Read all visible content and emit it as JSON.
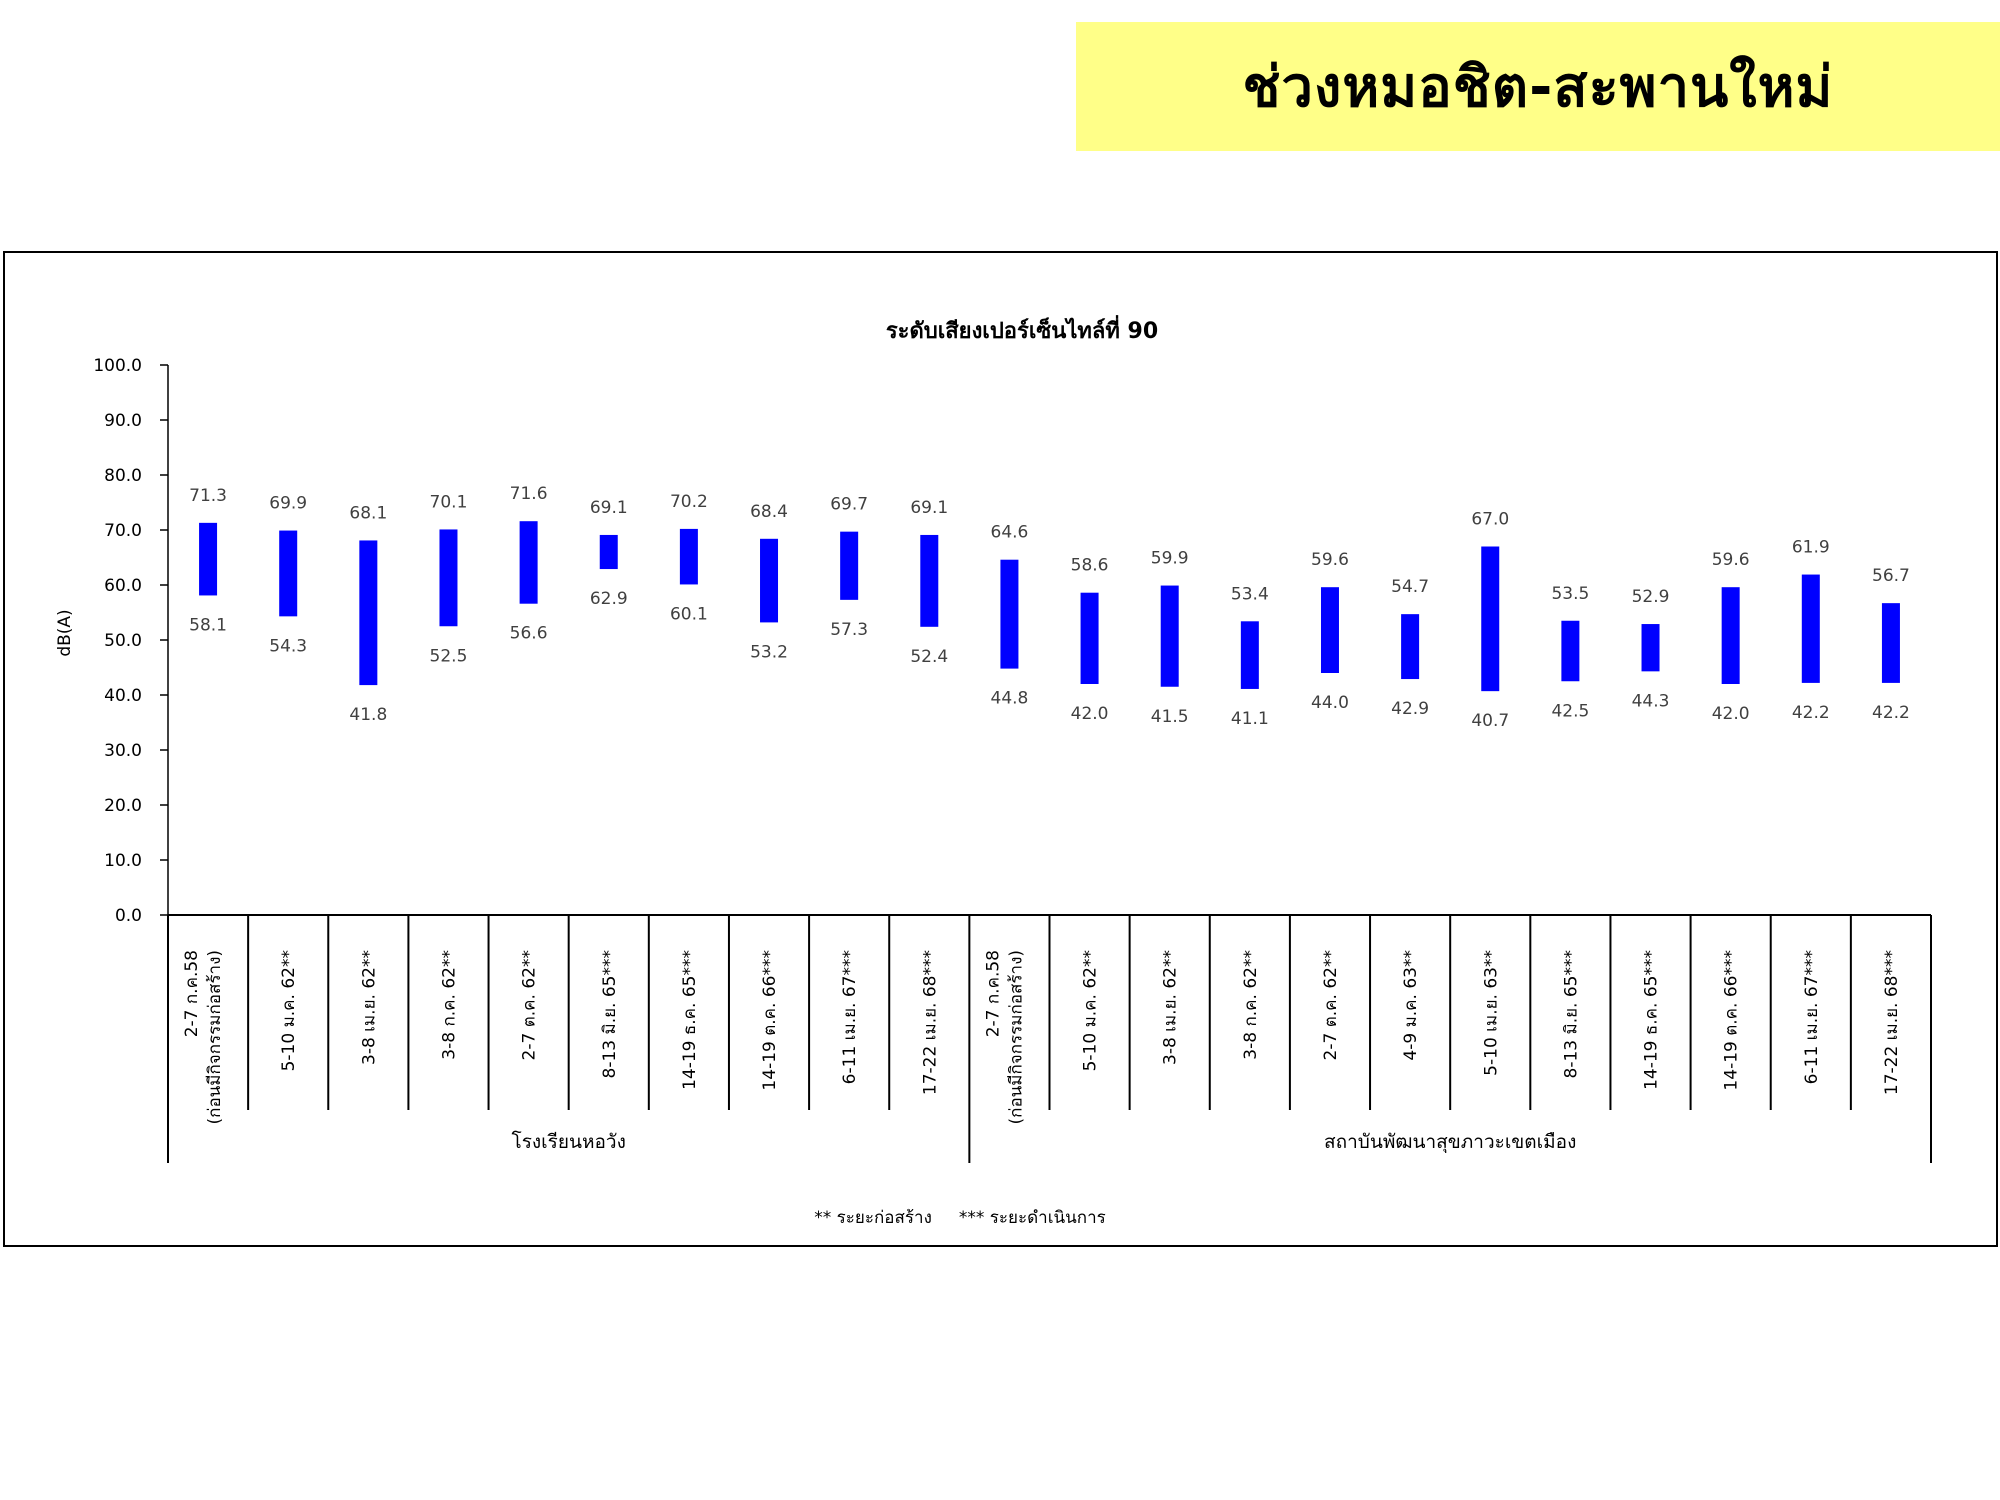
{
  "header": {
    "title": "ช่วงหมอชิต-สะพานใหม่"
  },
  "colors": {
    "title_bg": "#ffff88",
    "bar": "#0000ff",
    "text": "#000000",
    "value_label": "#404040"
  },
  "chart_data": {
    "type": "bar",
    "subtype": "floating-range",
    "title": "ระดับเสียงเปอร์เซ็นไทล์ที่ 90",
    "ylabel": "dB(A)",
    "xlabel": "",
    "ylim": [
      0,
      100
    ],
    "yticks": [
      "0.0",
      "10.0",
      "20.0",
      "30.0",
      "40.0",
      "50.0",
      "60.0",
      "70.0",
      "80.0",
      "90.0",
      "100.0"
    ],
    "grid": false,
    "legend_text": "** ระยะก่อสร้าง     *** ระยะดำเนินการ",
    "legend_position": "bottom-center",
    "groups": [
      {
        "name": "โรงเรียนหอวัง",
        "categories": [
          {
            "line1": "2-7 ก.ค.58",
            "line2": "(ก่อนมีกิจกรรมก่อสร้าง)"
          },
          {
            "line1": "5-10 ม.ค. 62**"
          },
          {
            "line1": "3-8 เม.ย. 62**"
          },
          {
            "line1": "3-8 ก.ค. 62**"
          },
          {
            "line1": "2-7 ต.ค. 62**"
          },
          {
            "line1": "8-13 มิ.ย. 65***"
          },
          {
            "line1": "14-19 ธ.ค. 65***"
          },
          {
            "line1": "14-19 ต.ค. 66***"
          },
          {
            "line1": "6-11 เม.ย. 67***"
          },
          {
            "line1": "17-22 เม.ย. 68***"
          }
        ],
        "max": [
          71.3,
          69.9,
          68.1,
          70.1,
          71.6,
          69.1,
          70.2,
          68.4,
          69.7,
          69.1
        ],
        "min": [
          58.1,
          54.3,
          41.8,
          52.5,
          56.6,
          62.9,
          60.1,
          53.2,
          57.3,
          52.4
        ],
        "max_labels": [
          "71.3",
          "69.9",
          "68.1",
          "70.1",
          "71.6",
          "69.1",
          "70.2",
          "68.4",
          "69.7",
          "69.1"
        ],
        "min_labels": [
          "58.1",
          "54.3",
          "41.8",
          "52.5",
          "56.6",
          "62.9",
          "60.1",
          "53.2",
          "57.3",
          "52.4"
        ]
      },
      {
        "name": "สถาบันพัฒนาสุขภาวะเขตเมือง",
        "categories": [
          {
            "line1": "2-7 ก.ค.58",
            "line2": "(ก่อนมีกิจกรรมก่อสร้าง)"
          },
          {
            "line1": "5-10 ม.ค. 62**"
          },
          {
            "line1": "3-8 เม.ย. 62**"
          },
          {
            "line1": "3-8 ก.ค. 62**"
          },
          {
            "line1": "2-7 ต.ค. 62**"
          },
          {
            "line1": "4-9 ม.ค. 63**"
          },
          {
            "line1": "5-10 เม.ย. 63**"
          },
          {
            "line1": "8-13 มิ.ย. 65***"
          },
          {
            "line1": "14-19 ธ.ค. 65***"
          },
          {
            "line1": "14-19 ต.ค. 66***"
          },
          {
            "line1": "6-11 เม.ย. 67***"
          },
          {
            "line1": "17-22 เม.ย. 68***"
          }
        ],
        "max": [
          64.6,
          58.6,
          59.9,
          53.4,
          59.6,
          54.7,
          67.0,
          53.5,
          52.9,
          59.6,
          61.9,
          56.7
        ],
        "min": [
          44.8,
          42.0,
          41.5,
          41.1,
          44.0,
          42.9,
          40.7,
          42.5,
          44.3,
          42.0,
          42.2,
          42.2
        ],
        "max_labels": [
          "64.6",
          "58.6",
          "59.9",
          "53.4",
          "59.6",
          "54.7",
          "67.0",
          "53.5",
          "52.9",
          "59.6",
          "61.9",
          "56.7"
        ],
        "min_labels": [
          "44.8",
          "42.0",
          "41.5",
          "41.1",
          "44.0",
          "42.9",
          "40.7",
          "42.5",
          "44.3",
          "42.0",
          "42.2",
          "42.2"
        ]
      }
    ]
  }
}
